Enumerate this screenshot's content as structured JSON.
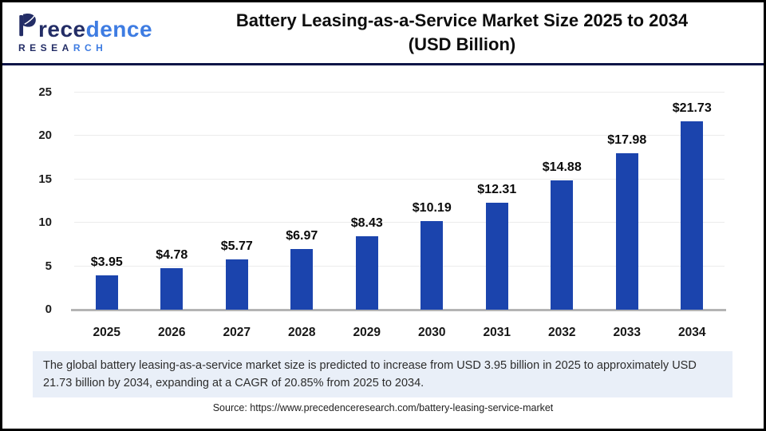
{
  "header": {
    "logo": {
      "word_dark": "rece",
      "word_light": "dence",
      "sub_dark": "RESEA",
      "sub_light": "RCH"
    },
    "title_line1": "Battery Leasing-as-a-Service Market Size 2025 to 2034",
    "title_line2": "(USD Billion)"
  },
  "chart_data": {
    "type": "bar",
    "title": "Battery Leasing-as-a-Service Market Size 2025 to 2034 (USD Billion)",
    "categories": [
      "2025",
      "2026",
      "2027",
      "2028",
      "2029",
      "2030",
      "2031",
      "2032",
      "2033",
      "2034"
    ],
    "values": [
      3.95,
      4.78,
      5.77,
      6.97,
      8.43,
      10.19,
      12.31,
      14.88,
      17.98,
      21.73
    ],
    "value_prefix": "$",
    "xlabel": "",
    "ylabel": "",
    "ylim": [
      0,
      25
    ],
    "yticks": [
      0,
      5,
      10,
      15,
      20,
      25
    ],
    "grid": "horizontal",
    "legend": "none",
    "bar_color": "#1b44ad"
  },
  "summary_text": "The global battery leasing-as-a-service market size is predicted to increase from USD 3.95 billion in 2025 to approximately USD 21.73 billion by 2034, expanding at a CAGR of 20.85% from 2025 to 2034.",
  "source_text": "Source: https://www.precedenceresearch.com/battery-leasing-service-market",
  "colors": {
    "bar": "#1b44ad",
    "header_rule": "#0e1547",
    "logo_dark": "#232d66",
    "logo_light": "#3e7ce2",
    "gridline": "#ececec",
    "axis_line": "#b4b4b4",
    "summary_bg": "#e9eff8"
  }
}
